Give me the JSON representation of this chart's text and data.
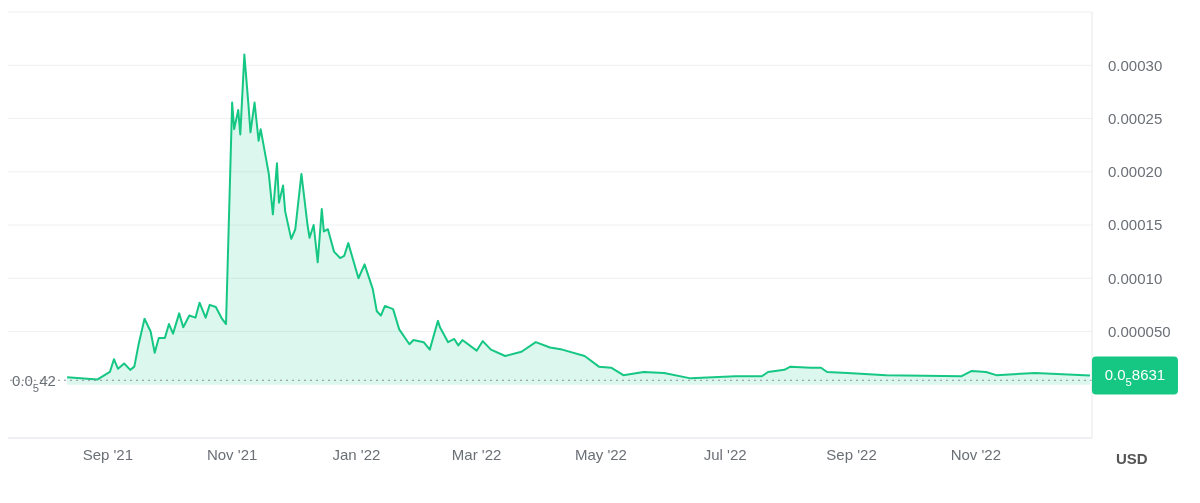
{
  "chart_data": {
    "type": "area",
    "x": [
      "2021-08-12",
      "2021-08-27",
      "2021-09-02",
      "2021-09-04",
      "2021-09-06",
      "2021-09-09",
      "2021-09-12",
      "2021-09-14",
      "2021-09-16",
      "2021-09-19",
      "2021-09-22",
      "2021-09-24",
      "2021-09-26",
      "2021-09-29",
      "2021-10-01",
      "2021-10-03",
      "2021-10-06",
      "2021-10-08",
      "2021-10-11",
      "2021-10-14",
      "2021-10-16",
      "2021-10-19",
      "2021-10-21",
      "2021-10-24",
      "2021-10-27",
      "2021-10-29",
      "2021-11-01",
      "2021-11-02",
      "2021-11-04",
      "2021-11-05",
      "2021-11-07",
      "2021-11-09",
      "2021-11-10",
      "2021-11-12",
      "2021-11-14",
      "2021-11-15",
      "2021-11-19",
      "2021-11-21",
      "2021-11-23",
      "2021-11-24",
      "2021-11-26",
      "2021-11-27",
      "2021-11-30",
      "2021-12-02",
      "2021-12-05",
      "2021-12-08",
      "2021-12-09",
      "2021-12-11",
      "2021-12-13",
      "2021-12-15",
      "2021-12-16",
      "2021-12-18",
      "2021-12-21",
      "2021-12-24",
      "2021-12-26",
      "2021-12-28",
      "2022-01-02",
      "2022-01-05",
      "2022-01-09",
      "2022-01-11",
      "2022-01-13",
      "2022-01-15",
      "2022-01-19",
      "2022-01-22",
      "2022-01-27",
      "2022-01-29",
      "2022-02-03",
      "2022-02-06",
      "2022-02-10",
      "2022-02-11",
      "2022-02-15",
      "2022-02-18",
      "2022-02-20",
      "2022-02-22",
      "2022-03-01",
      "2022-03-04",
      "2022-03-08",
      "2022-03-15",
      "2022-03-23",
      "2022-03-30",
      "2022-04-06",
      "2022-04-12",
      "2022-04-23",
      "2022-04-30",
      "2022-05-06",
      "2022-05-12",
      "2022-05-22",
      "2022-06-01",
      "2022-06-14",
      "2022-07-06",
      "2022-07-19",
      "2022-07-22",
      "2022-07-30",
      "2022-08-02",
      "2022-08-12",
      "2022-08-17",
      "2022-08-20",
      "2022-08-30",
      "2022-09-18",
      "2022-10-25",
      "2022-10-30",
      "2022-11-06",
      "2022-11-11",
      "2022-11-30",
      "2022-12-27"
    ],
    "series": [
      {
        "color": "#16c784",
        "values": [
          7e-06,
          5e-06,
          1.2e-05,
          2.4e-05,
          1.5e-05,
          2e-05,
          1.4e-05,
          1.7e-05,
          3.7e-05,
          6.2e-05,
          5e-05,
          3e-05,
          4.4e-05,
          4.4e-05,
          5.7e-05,
          4.8e-05,
          6.7e-05,
          5.4e-05,
          6.5e-05,
          6.3e-05,
          7.7e-05,
          6.3e-05,
          7.5e-05,
          7.3e-05,
          6.2e-05,
          5.7e-05,
          0.000265,
          0.00024,
          0.000258,
          0.000235,
          0.00031,
          0.000263,
          0.000237,
          0.000265,
          0.000229,
          0.00024,
          0.000198,
          0.00016,
          0.000208,
          0.000171,
          0.000187,
          0.000163,
          0.000137,
          0.000146,
          0.000198,
          0.00015,
          0.000138,
          0.00015,
          0.000115,
          0.000165,
          0.000144,
          0.000146,
          0.000125,
          0.000119,
          0.000121,
          0.000133,
          0.0001,
          0.000113,
          9e-05,
          6.9e-05,
          6.5e-05,
          7.4e-05,
          7.1e-05,
          5.2e-05,
          3.8e-05,
          4.2e-05,
          4e-05,
          3.3e-05,
          6e-05,
          5.4e-05,
          4e-05,
          4.3e-05,
          3.7e-05,
          4.2e-05,
          3.2e-05,
          4.1e-05,
          3.3e-05,
          2.7e-05,
          3.1e-05,
          4e-05,
          3.5e-05,
          3.3e-05,
          2.7e-05,
          1.7e-05,
          1.6e-05,
          9e-06,
          1.2e-05,
          1.1e-05,
          6e-06,
          8e-06,
          8e-06,
          1.2e-05,
          1.4e-05,
          1.7e-05,
          1.6e-05,
          1.6e-05,
          1.2e-05,
          1.1e-05,
          9e-06,
          8e-06,
          1.3e-05,
          1.2e-05,
          9e-06,
          1.1e-05,
          8.631e-06
        ]
      }
    ],
    "ylabel": "USD",
    "xlim": [
      "2021-07-14",
      "2022-12-28"
    ],
    "xticks": [
      {
        "value": "2021-09-01",
        "label": "Sep '21"
      },
      {
        "value": "2021-11-01",
        "label": "Nov '21"
      },
      {
        "value": "2022-01-01",
        "label": "Jan '22"
      },
      {
        "value": "2022-03-01",
        "label": "Mar '22"
      },
      {
        "value": "2022-05-01",
        "label": "May '22"
      },
      {
        "value": "2022-07-01",
        "label": "Jul '22"
      },
      {
        "value": "2022-09-01",
        "label": "Sep '22"
      },
      {
        "value": "2022-11-01",
        "label": "Nov '22"
      }
    ],
    "ylim": [
      -5e-05,
      0.00035
    ],
    "yticks": [
      {
        "value": 5e-05,
        "label": "0.000050"
      },
      {
        "value": 0.0001,
        "label": "0.00010"
      },
      {
        "value": 0.00015,
        "label": "0.00015"
      },
      {
        "value": 0.0002,
        "label": "0.00020"
      },
      {
        "value": 0.00025,
        "label": "0.00025"
      },
      {
        "value": 0.0003,
        "label": "0.00030"
      }
    ],
    "ref_lines": [
      {
        "axis": "y",
        "value": 4.2e-06,
        "label": "0.0$_{5}$42",
        "color": "#8a8f98",
        "line_style": "dotted"
      }
    ],
    "annotations": [
      {
        "text": "0.0$_{5}$8631",
        "x": "2022-12-27",
        "y": 8.631e-06
      }
    ],
    "grid": "y",
    "marker": "none"
  }
}
